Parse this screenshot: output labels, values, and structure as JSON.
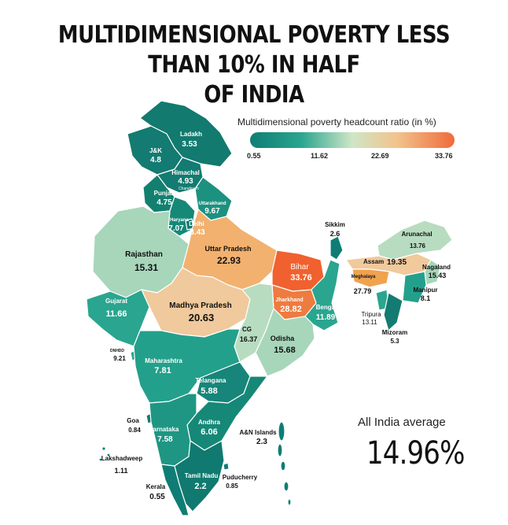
{
  "title_line1": "MULTIDIMENSIONAL POVERTY LESS THAN 10% IN HALF",
  "title_line2": "OF INDIA",
  "legend": {
    "title": "Multidimensional poverty headcount ratio (in %)",
    "ticks": [
      "0.55",
      "11.62",
      "22.69",
      "33.76"
    ],
    "colors": [
      "#0f7d75",
      "#2aa58f",
      "#cfe6c6",
      "#f2c38c",
      "#f06a3a"
    ]
  },
  "average": {
    "label": "All India average",
    "value": "14.96%"
  },
  "regions": {
    "ladakh": {
      "name": "Ladakh",
      "value": "3.53"
    },
    "jk": {
      "name": "J&K",
      "value": "4.8"
    },
    "himachal": {
      "name": "Himachal",
      "value": "4.93"
    },
    "chandigarh": {
      "name": "Chandigarh",
      "value": "3.52"
    },
    "punjab": {
      "name": "Punjab",
      "value": "4.75"
    },
    "uttarakhand": {
      "name": "Uttarakhand",
      "value": "9.67"
    },
    "haryana": {
      "name": "Haryana",
      "value": "7.07"
    },
    "delhi": {
      "name": "Delhi",
      "value": "3.43"
    },
    "rajasthan": {
      "name": "Rajasthan",
      "value": "15.31"
    },
    "up": {
      "name": "Uttar Pradesh",
      "value": "22.93"
    },
    "bihar": {
      "name": "Bihar",
      "value": "33.76"
    },
    "sikkim": {
      "name": "Sikkim",
      "value": "2.6"
    },
    "arunachal": {
      "name": "Arunachal",
      "value": "13.76"
    },
    "assam": {
      "name": "Assam",
      "value": "19.35"
    },
    "nagaland": {
      "name": "Nagaland",
      "value": "15.43"
    },
    "meghalaya": {
      "name": "Meghalaya",
      "value": "27.79"
    },
    "manipur": {
      "name": "Manipur",
      "value": "8.1"
    },
    "tripura": {
      "name": "Tripura",
      "value": "13.11"
    },
    "mizoram": {
      "name": "Mizoram",
      "value": "5.3"
    },
    "jharkhand": {
      "name": "Jharkhand",
      "value": "28.82"
    },
    "bengal": {
      "name": "Bengal",
      "value": "11.89"
    },
    "gujarat": {
      "name": "Gujarat",
      "value": "11.66"
    },
    "mp": {
      "name": "Madhya Pradesh",
      "value": "20.63"
    },
    "cg": {
      "name": "CG",
      "value": "16.37"
    },
    "odisha": {
      "name": "Odisha",
      "value": "15.68"
    },
    "dndd": {
      "name": "DNHDD",
      "value": "9.21"
    },
    "maharashtra": {
      "name": "Maharashtra",
      "value": "7.81"
    },
    "telangana": {
      "name": "Telangana",
      "value": "5.88"
    },
    "goa": {
      "name": "Goa",
      "value": "0.84"
    },
    "karnataka": {
      "name": "Karnataka",
      "value": "7.58"
    },
    "andhra": {
      "name": "Andhra",
      "value": "6.06"
    },
    "an": {
      "name": "A&N Islands",
      "value": "2.3"
    },
    "lakshadweep": {
      "name": "Lakshadweep",
      "value": "1.11"
    },
    "tamilnadu": {
      "name": "Tamil Nadu",
      "value": "2.2"
    },
    "puducherry": {
      "name": "Puducherry",
      "value": "0.85"
    },
    "kerala": {
      "name": "Kerala",
      "value": "0.55"
    }
  }
}
